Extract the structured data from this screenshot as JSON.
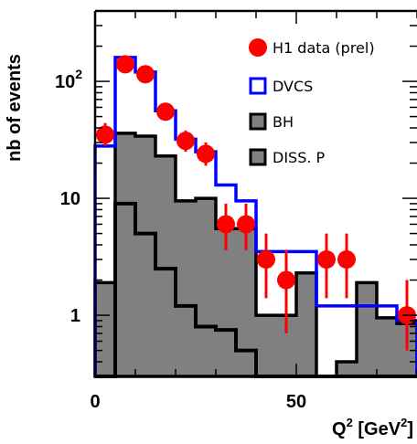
{
  "chart_data": {
    "type": "histogram",
    "xlabel": "Q",
    "xlabel_sup": "2",
    "xlabel_unit_open": " [GeV",
    "xlabel_unit_sup": "2",
    "xlabel_unit_close": "]",
    "ylabel": "nb of events",
    "xlim": [
      0,
      80
    ],
    "ylim": [
      0.3,
      400
    ],
    "yscale": "log",
    "x_ticks": [
      {
        "value": 0,
        "label": "0"
      },
      {
        "value": 50,
        "label": "50"
      }
    ],
    "y_ticks": [
      {
        "value": 1,
        "label": "1",
        "sup": ""
      },
      {
        "value": 10,
        "label": "10",
        "sup": ""
      },
      {
        "value": 100,
        "label": "10",
        "sup": "2"
      }
    ],
    "legend": {
      "placement": "top-right",
      "entries": [
        {
          "label": "H1 data (prel)",
          "marker": "circle",
          "color": "#ff0000"
        },
        {
          "label": "DVCS",
          "marker": "open-square",
          "color": "#0000ff"
        },
        {
          "label": "BH",
          "marker": "filled-square",
          "color": "#808080"
        },
        {
          "label": "DISS. P",
          "marker": "filled-square",
          "color": "#808080"
        }
      ]
    },
    "bin_edges": [
      0,
      5,
      10,
      15,
      20,
      25,
      30,
      35,
      40,
      45,
      50,
      55,
      60,
      65,
      70,
      75,
      80
    ],
    "series": [
      {
        "name": "DVCS",
        "style": "step",
        "color": "#0000ff",
        "values": [
          28,
          160,
          120,
          56,
          32,
          25,
          13,
          9.5,
          3.5,
          3.5,
          3.5,
          1.2,
          1.2,
          1.2,
          1.2,
          0.9
        ]
      },
      {
        "name": "BH",
        "style": "filled-step",
        "color": "#808080",
        "values": [
          1.9,
          36,
          34,
          23,
          9.5,
          10,
          5.5,
          5.5,
          1.0,
          1.0,
          2.3,
          0.3,
          0.4,
          1.9,
          0.95,
          0.85
        ]
      },
      {
        "name": "DISS. P",
        "style": "step",
        "color": "#000000",
        "values": [
          0.3,
          9,
          5,
          2.5,
          1.2,
          0.8,
          0.75,
          0.5,
          0.3,
          0.3,
          0.3,
          0.3,
          0.3,
          0.3,
          0.3,
          0.3
        ]
      },
      {
        "name": "H1 data (prel)",
        "style": "points",
        "color": "#ff0000",
        "points": [
          {
            "x": 2.5,
            "y": 35,
            "err_low": 28,
            "err_high": 44
          },
          {
            "x": 7.5,
            "y": 140,
            "err_low": 126,
            "err_high": 156
          },
          {
            "x": 12.5,
            "y": 115,
            "err_low": 103,
            "err_high": 129
          },
          {
            "x": 17.5,
            "y": 55,
            "err_low": 47,
            "err_high": 64
          },
          {
            "x": 22.5,
            "y": 31,
            "err_low": 25,
            "err_high": 38
          },
          {
            "x": 27.5,
            "y": 24,
            "err_low": 19,
            "err_high": 30
          },
          {
            "x": 32.5,
            "y": 6,
            "err_low": 3.6,
            "err_high": 9
          },
          {
            "x": 37.5,
            "y": 6,
            "err_low": 3.6,
            "err_high": 9
          },
          {
            "x": 42.5,
            "y": 3,
            "err_low": 1.4,
            "err_high": 5
          },
          {
            "x": 47.5,
            "y": 2,
            "err_low": 0.7,
            "err_high": 3.6
          },
          {
            "x": 57.5,
            "y": 3,
            "err_low": 1.4,
            "err_high": 5
          },
          {
            "x": 62.5,
            "y": 3,
            "err_low": 1.4,
            "err_high": 5
          },
          {
            "x": 77.5,
            "y": 1,
            "err_low": 0.5,
            "err_high": 2
          }
        ]
      }
    ]
  }
}
